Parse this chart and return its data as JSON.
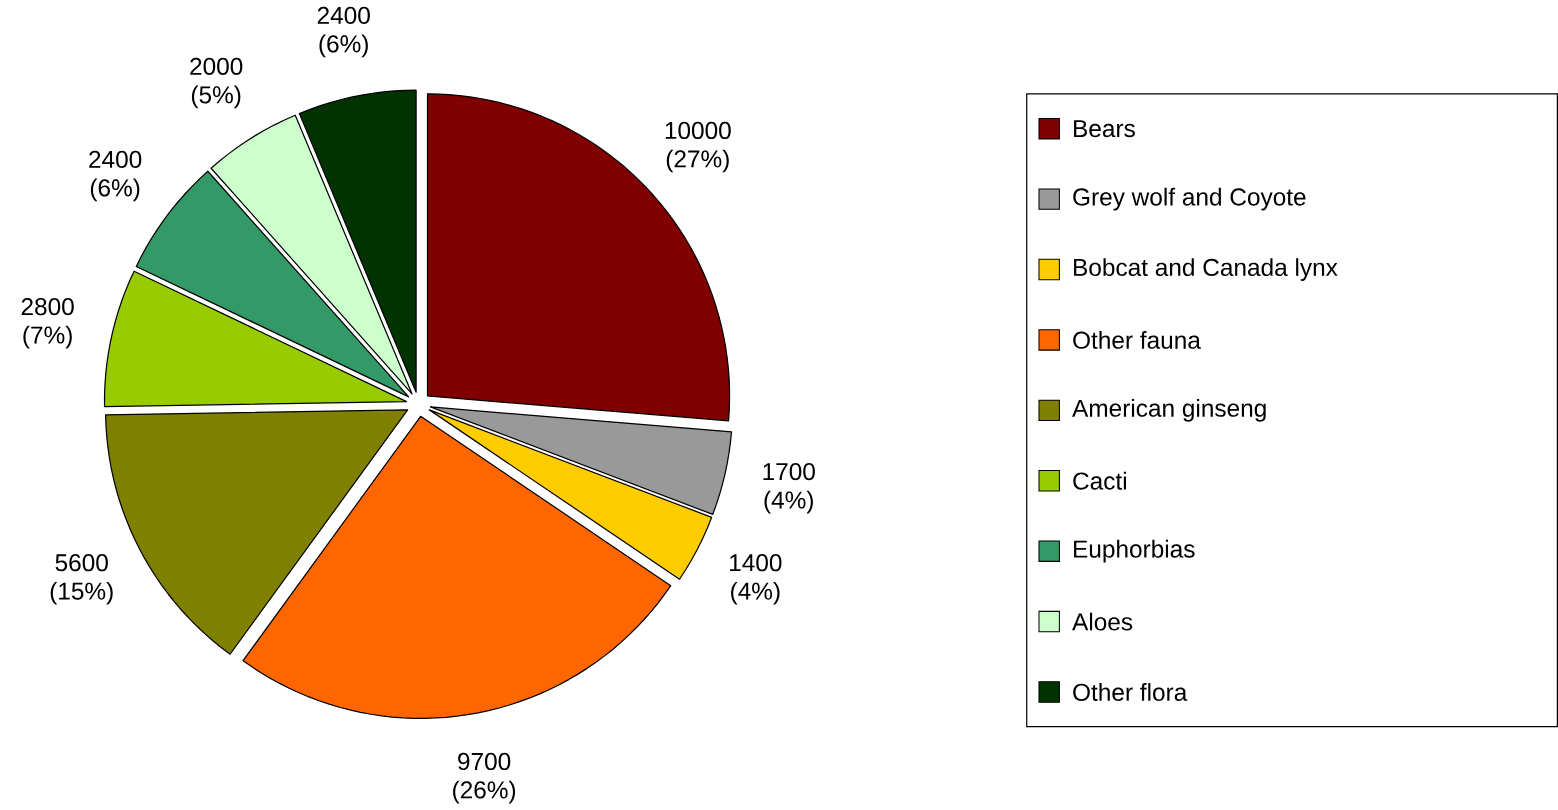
{
  "chart_data": {
    "type": "pie",
    "categories": [
      "Bears",
      "Grey wolf and Coyote",
      "Bobcat and Canada lynx",
      "Other fauna",
      "American ginseng",
      "Cacti",
      "Euphorbias",
      "Aloes",
      "Other flora"
    ],
    "values": [
      10000,
      1700,
      1400,
      9700,
      5600,
      2800,
      2400,
      2000,
      2400
    ],
    "colors": [
      "#800000",
      "#999999",
      "#ffcc00",
      "#ff6600",
      "#808000",
      "#99cc00",
      "#339966",
      "#ccffcc",
      "#003300"
    ],
    "value_labels": [
      "10000 (27%)",
      "1700 (4%)",
      "1400 (4%)",
      "9700 (26%)",
      "5600 (15%)",
      "2800 (7%)",
      "2400 (6%)",
      "2000 (5%)",
      "2400 (6%)"
    ],
    "legend": "right"
  }
}
